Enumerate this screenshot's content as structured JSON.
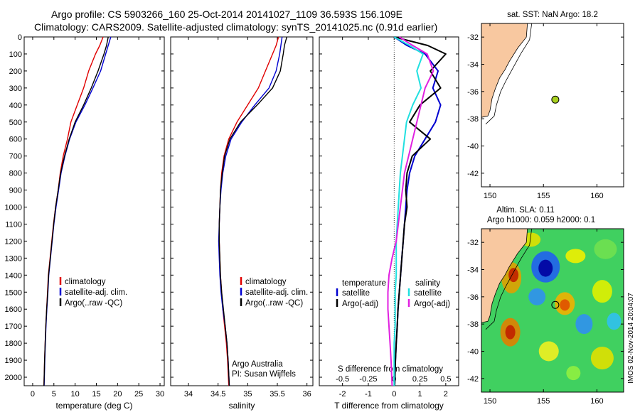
{
  "header": {
    "line1": "Argo profile: CS 5903266_160 25-Oct-2014 20141027_1109 36.593S 156.109E",
    "line2": "Climatology: CARS2009. Satellite-adjusted climatology: synTS_20141025.nc (0.91d earlier)"
  },
  "colors": {
    "climatology": "#e00000",
    "satellite": "#0000d0",
    "argo": "#000000",
    "s_satellite": "#20e0e0",
    "s_argo": "#e020e0",
    "land": "#f8c8a0",
    "float_marker": "#a8d020"
  },
  "chart_data": [
    {
      "type": "line",
      "xlabel": "temperature (deg C)",
      "xlim": [
        -2,
        31
      ],
      "xticks": [
        0,
        5,
        10,
        15,
        20,
        25,
        30
      ],
      "ylim": [
        0,
        2050
      ],
      "yticks": [
        0,
        100,
        200,
        300,
        400,
        500,
        600,
        700,
        800,
        900,
        1000,
        1100,
        1200,
        1300,
        1400,
        1500,
        1600,
        1700,
        1800,
        1900,
        2000
      ],
      "legend": [
        "climatology",
        "satellite-adj. clim.",
        "Argo(..raw -QC)"
      ],
      "series": [
        {
          "name": "climatology",
          "color": "#e00000",
          "x": [
            16.6,
            15.8,
            14.8,
            13.2,
            12.0,
            10.5,
            9.0,
            8.2,
            7.2,
            6.5,
            6.0,
            5.4,
            4.9,
            4.5,
            4.1,
            3.7,
            3.5,
            3.3,
            3.1,
            2.95,
            2.8,
            2.65
          ],
          "y": [
            0,
            50,
            100,
            200,
            300,
            400,
            500,
            600,
            700,
            800,
            900,
            1000,
            1100,
            1200,
            1300,
            1400,
            1500,
            1600,
            1700,
            1800,
            1900,
            2050
          ]
        },
        {
          "name": "satellite-adj. clim.",
          "color": "#0000d0",
          "x": [
            18.4,
            17.8,
            17.2,
            16.0,
            14.2,
            12.3,
            10.2,
            8.7,
            7.6,
            6.7,
            6.1,
            5.5,
            5.0,
            4.6,
            4.2,
            3.8,
            3.6,
            3.35,
            3.15,
            3.0,
            2.85,
            2.7
          ],
          "y": [
            0,
            50,
            100,
            200,
            300,
            400,
            500,
            600,
            700,
            800,
            900,
            1000,
            1100,
            1200,
            1300,
            1400,
            1500,
            1600,
            1700,
            1800,
            1900,
            2050
          ]
        },
        {
          "name": "Argo(..raw -QC)",
          "color": "#000000",
          "x": [
            17.8,
            17.4,
            16.8,
            15.4,
            13.8,
            12.0,
            10.0,
            8.6,
            7.5,
            6.6,
            6.0,
            5.4,
            4.95,
            4.55,
            4.15,
            3.75,
            3.55,
            3.3,
            3.1,
            2.95,
            2.8,
            2.65
          ],
          "y": [
            0,
            50,
            100,
            200,
            300,
            400,
            500,
            600,
            700,
            800,
            900,
            1000,
            1100,
            1200,
            1300,
            1400,
            1500,
            1600,
            1700,
            1800,
            1900,
            2050
          ]
        }
      ]
    },
    {
      "type": "line",
      "xlabel": "salinity",
      "xlim": [
        33.7,
        36.1
      ],
      "xticks": [
        34,
        34.5,
        35,
        35.5,
        36
      ],
      "ylim": [
        0,
        2050
      ],
      "legend": [
        "climatology",
        "satellite-adj. clim.",
        "Argo(..raw -QC)"
      ],
      "annotation": [
        "Argo Australia",
        "PI: Susan Wijffels"
      ],
      "series": [
        {
          "name": "climatology",
          "color": "#e00000",
          "x": [
            35.52,
            35.48,
            35.42,
            35.3,
            35.18,
            35.0,
            34.82,
            34.68,
            34.6,
            34.56,
            34.54,
            34.53,
            34.52,
            34.52,
            34.53,
            34.54,
            34.56,
            34.58,
            34.61,
            34.64,
            34.66,
            34.68
          ],
          "y": [
            0,
            50,
            100,
            200,
            300,
            400,
            500,
            600,
            700,
            800,
            900,
            1000,
            1100,
            1200,
            1300,
            1400,
            1500,
            1600,
            1700,
            1800,
            1900,
            2050
          ]
        },
        {
          "name": "satellite-adj. clim.",
          "color": "#0000d0",
          "x": [
            35.58,
            35.56,
            35.54,
            35.48,
            35.36,
            35.12,
            34.9,
            34.72,
            34.63,
            34.58,
            34.55,
            34.53,
            34.52,
            34.51,
            34.52,
            34.53,
            34.55,
            34.58,
            34.62,
            34.65,
            34.67,
            34.69
          ],
          "y": [
            0,
            50,
            100,
            200,
            300,
            400,
            500,
            600,
            700,
            800,
            900,
            1000,
            1100,
            1200,
            1300,
            1400,
            1500,
            1600,
            1700,
            1800,
            1900,
            2050
          ]
        },
        {
          "name": "Argo(..raw -QC)",
          "color": "#000000",
          "x": [
            35.66,
            35.62,
            35.6,
            35.55,
            35.42,
            35.16,
            34.88,
            34.7,
            34.61,
            34.57,
            34.54,
            34.53,
            34.52,
            34.52,
            34.53,
            34.54,
            34.56,
            34.59,
            34.62,
            34.65,
            34.67,
            34.69
          ],
          "y": [
            0,
            50,
            100,
            200,
            300,
            400,
            500,
            600,
            700,
            800,
            900,
            1000,
            1100,
            1200,
            1300,
            1400,
            1500,
            1600,
            1700,
            1800,
            1900,
            2050
          ]
        }
      ]
    },
    {
      "type": "line",
      "xlabel": "T difference from climatology",
      "xlabel_top": "S difference from climatology",
      "xlim": [
        -2.9,
        2.5
      ],
      "xticks": [
        -2,
        -1,
        0,
        1,
        2
      ],
      "xticks_top": [
        -0.5,
        -0.25,
        0,
        0.25,
        0.5
      ],
      "xtick_labels_top": [
        "-0.5",
        "-0.25",
        "0",
        "0.25",
        "0.5"
      ],
      "ylim": [
        0,
        2050
      ],
      "legend_left_title": "temperature",
      "legend_right_title": "salinity",
      "legend_left": [
        "satellite",
        "Argo(-adj)"
      ],
      "legend_right": [
        "satellite",
        "Argo(-adj)"
      ],
      "series": [
        {
          "name": "T satellite",
          "color": "#0000d0",
          "x": [
            0.0,
            0.5,
            1.2,
            1.7,
            1.5,
            1.8,
            1.6,
            1.2,
            0.8,
            0.6,
            0.5,
            0.45,
            0.4,
            0.35,
            0.3,
            0.25,
            0.2,
            0.15,
            0.12,
            0.08,
            0.05,
            0.02
          ],
          "y": [
            0,
            50,
            100,
            200,
            300,
            400,
            500,
            600,
            700,
            800,
            900,
            1000,
            1100,
            1200,
            1300,
            1400,
            1500,
            1600,
            1700,
            1800,
            1900,
            2050
          ]
        },
        {
          "name": "T Argo(-adj)",
          "color": "#000000",
          "x": [
            0.0,
            1.3,
            2.0,
            1.4,
            1.8,
            1.0,
            0.6,
            1.4,
            0.7,
            0.5,
            0.45,
            0.5,
            0.4,
            0.35,
            0.3,
            0.25,
            0.2,
            0.15,
            0.12,
            0.08,
            0.05,
            0.02
          ],
          "y": [
            0,
            50,
            100,
            200,
            300,
            400,
            500,
            600,
            700,
            800,
            900,
            1000,
            1100,
            1200,
            1300,
            1400,
            1500,
            1600,
            1700,
            1800,
            1900,
            2050
          ]
        },
        {
          "name": "S satellite",
          "color": "#20e0e0",
          "x": [
            0.0,
            0.15,
            0.28,
            0.22,
            0.26,
            0.18,
            0.12,
            0.1,
            0.08,
            0.06,
            0.05,
            0.04,
            0.03,
            0.02,
            0.02,
            0.02,
            0.01,
            0.01,
            0.01,
            0.0,
            0.0,
            0.0
          ],
          "y": [
            0,
            50,
            100,
            200,
            300,
            400,
            500,
            600,
            700,
            800,
            900,
            1000,
            1100,
            1200,
            1300,
            1400,
            1500,
            1600,
            1700,
            1800,
            1900,
            2050
          ]
        },
        {
          "name": "S Argo(-adj)",
          "color": "#e020e0",
          "x": [
            0.05,
            0.18,
            0.32,
            0.38,
            0.3,
            0.26,
            0.22,
            0.18,
            0.14,
            0.1,
            0.08,
            0.06,
            0.04,
            0.02,
            -0.02,
            -0.05,
            -0.06,
            -0.06,
            -0.05,
            -0.04,
            -0.03,
            -0.02
          ],
          "y": [
            0,
            50,
            100,
            200,
            300,
            400,
            500,
            600,
            700,
            800,
            900,
            1000,
            1100,
            1200,
            1300,
            1400,
            1500,
            1600,
            1700,
            1800,
            1900,
            2050
          ]
        }
      ]
    }
  ],
  "maps": {
    "top": {
      "title": "sat. SST: NaN Argo: 18.2",
      "xticks": [
        150,
        155,
        160
      ],
      "yticks": [
        -32,
        -34,
        -36,
        -38,
        -40,
        -42
      ],
      "xlim": [
        149.2,
        162.5
      ],
      "ylim": [
        -43,
        -31
      ]
    },
    "bottom": {
      "title1": "Altim. SLA: 0.11",
      "title2": "Argo h1000: 0.059 h2000: 0.1",
      "xticks": [
        150,
        155,
        160
      ],
      "yticks": [
        -32,
        -34,
        -36,
        -38,
        -40,
        -42
      ],
      "xlim": [
        149.2,
        162.5
      ],
      "ylim": [
        -43,
        -31
      ]
    },
    "float_position": {
      "lon": 156.109,
      "lat": -36.593
    }
  },
  "stamp": "IMOS 02-Nov-2014 20:04:07"
}
